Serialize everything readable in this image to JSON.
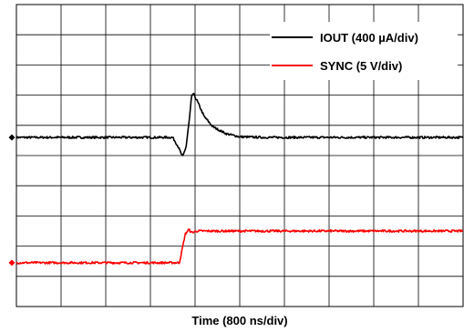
{
  "chart_data": {
    "type": "line",
    "title": "",
    "xlabel": "Time (800 ns/div)",
    "ylabel": "",
    "x_unit": "div",
    "y_unit": "div",
    "xlim": [
      0,
      10
    ],
    "ylim": [
      0,
      10
    ],
    "grid": true,
    "legend_position": "top-right",
    "series": [
      {
        "name": "IOUT (400 µA/div)",
        "color": "#000000",
        "marker": "◆",
        "marker_level": 5.6,
        "x": [
          0,
          3.5,
          3.62,
          3.72,
          3.8,
          3.88,
          3.92,
          3.96,
          4.05,
          4.2,
          4.4,
          4.7,
          5.0,
          5.5,
          10
        ],
        "y": [
          5.6,
          5.6,
          5.3,
          4.95,
          5.3,
          6.3,
          6.95,
          7.05,
          6.8,
          6.3,
          5.95,
          5.72,
          5.62,
          5.6,
          5.6
        ]
      },
      {
        "name": "SYNC (5 V/div)",
        "color": "#ff0000",
        "marker": "◆",
        "marker_level": 1.45,
        "x": [
          0,
          3.65,
          3.78,
          3.86,
          3.92,
          4.05,
          10
        ],
        "y": [
          1.45,
          1.45,
          2.4,
          2.55,
          2.45,
          2.5,
          2.5
        ]
      }
    ]
  }
}
